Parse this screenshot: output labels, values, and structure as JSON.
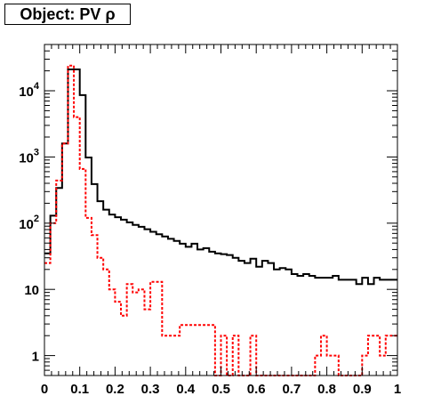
{
  "title": "Object: PV ρ",
  "colors": {
    "background": "#ffffff",
    "frame": "#000000",
    "series_black": "#000000",
    "series_red": "#ff0000"
  },
  "chart_data": {
    "type": "histogram",
    "title": "Object: PV ρ",
    "xlabel": "",
    "ylabel": "",
    "xlim": [
      0,
      1
    ],
    "ylim": [
      0.5,
      50000
    ],
    "y_scale": "log",
    "grid": false,
    "legend": "none",
    "x_ticks": [
      "0",
      "0.1",
      "0.2",
      "0.3",
      "0.4",
      "0.5",
      "0.6",
      "0.7",
      "0.8",
      "0.9",
      "1"
    ],
    "y_ticks": [
      {
        "value": 1,
        "label": "1"
      },
      {
        "value": 10,
        "label": "10"
      },
      {
        "value": 100,
        "label": "10^2"
      },
      {
        "value": 1000,
        "label": "10^3"
      },
      {
        "value": 10000,
        "label": "10^4"
      }
    ],
    "bin_edges_step": 0.0167,
    "series": [
      {
        "color": "#000000",
        "style": "solid",
        "values": [
          35,
          130,
          340,
          1600,
          21000,
          21000,
          8600,
          980,
          390,
          215,
          160,
          135,
          123,
          113,
          103,
          94,
          88,
          81,
          74,
          68,
          63,
          58,
          54,
          49,
          44,
          49,
          40,
          42,
          37,
          35,
          34,
          33,
          30,
          27,
          25,
          29,
          22,
          27,
          25,
          20,
          21,
          20,
          17,
          16,
          17,
          16,
          15,
          15,
          15,
          16,
          14,
          14,
          14,
          12,
          15,
          12,
          15,
          14,
          14,
          14
        ]
      },
      {
        "color": "#ff0000",
        "style": "dotted",
        "values": [
          25,
          100,
          440,
          1600,
          24000,
          4000,
          660,
          120,
          66,
          30,
          20,
          10,
          6.5,
          4,
          12,
          9,
          10,
          5,
          13,
          13,
          2,
          2,
          2,
          2.9,
          2.9,
          2.9,
          2.9,
          2.9,
          2.9,
          0.5,
          2,
          0.5,
          2,
          0.5,
          0.5,
          2,
          0.5,
          0.5,
          0.5,
          0.5,
          0.5,
          0.5,
          0.5,
          0.5,
          0.5,
          0.5,
          1,
          2,
          1,
          1,
          0.5,
          0.5,
          0.5,
          0.5,
          1,
          2,
          2,
          1,
          2,
          2
        ]
      }
    ]
  }
}
